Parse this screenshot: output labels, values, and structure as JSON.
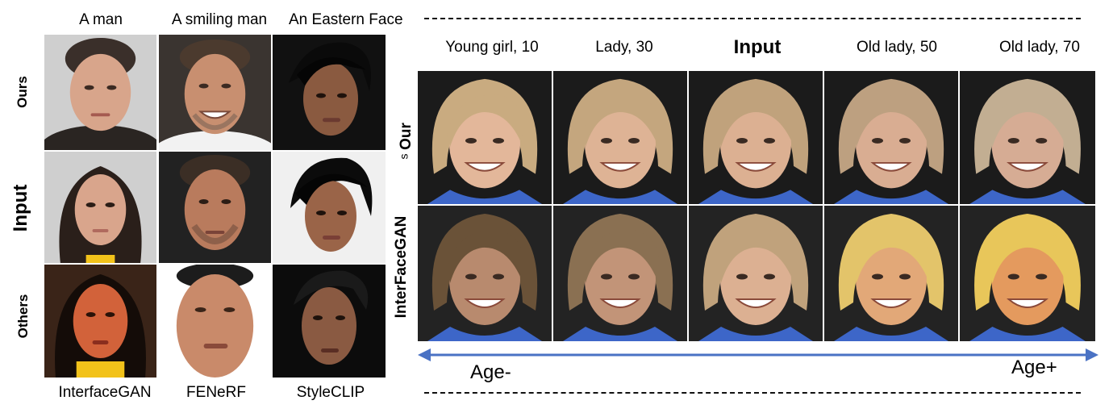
{
  "left_panel": {
    "column_headers": [
      "A man",
      "A smiling man",
      "An Eastern Face"
    ],
    "row_labels": [
      "Ours",
      "Input",
      "Others"
    ],
    "column_footers": [
      "InterfaceGAN",
      "FENeRF",
      "StyleCLIP"
    ]
  },
  "right_panel": {
    "column_headers": [
      "Young girl, 10",
      "Lady, 30",
      "Input",
      "Old lady, 50",
      "Old lady, 70"
    ],
    "row_labels": [
      "Our",
      "InterFaceGAN"
    ],
    "row_label_fragment": "s",
    "axis": {
      "left_label": "Age-",
      "right_label": "Age+",
      "color": "#4a72c4"
    }
  },
  "colors": {
    "dark_bg": "#1b1b1b",
    "blouse_blue": "#3d66c8",
    "yellow_shirt": "#f2c21a"
  }
}
